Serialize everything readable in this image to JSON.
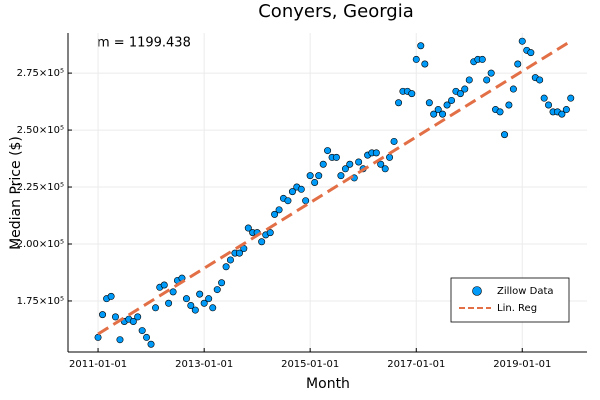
{
  "chart_data": {
    "type": "scatter",
    "title": "Conyers, Georgia",
    "x_label": "Month",
    "y_label": "Median Price ($)",
    "annotation": "m = 1199.438",
    "x": [
      "2011-01-01",
      "2011-02-01",
      "2011-03-01",
      "2011-04-01",
      "2011-05-01",
      "2011-06-01",
      "2011-07-01",
      "2011-08-01",
      "2011-09-01",
      "2011-10-01",
      "2011-11-01",
      "2011-12-01",
      "2012-01-01",
      "2012-02-01",
      "2012-03-01",
      "2012-04-01",
      "2012-05-01",
      "2012-06-01",
      "2012-07-01",
      "2012-08-01",
      "2012-09-01",
      "2012-10-01",
      "2012-11-01",
      "2012-12-01",
      "2013-01-01",
      "2013-02-01",
      "2013-03-01",
      "2013-04-01",
      "2013-05-01",
      "2013-06-01",
      "2013-07-01",
      "2013-08-01",
      "2013-09-01",
      "2013-10-01",
      "2013-11-01",
      "2013-12-01",
      "2014-01-01",
      "2014-02-01",
      "2014-03-01",
      "2014-04-01",
      "2014-05-01",
      "2014-06-01",
      "2014-07-01",
      "2014-08-01",
      "2014-09-01",
      "2014-10-01",
      "2014-11-01",
      "2014-12-01",
      "2015-01-01",
      "2015-02-01",
      "2015-03-01",
      "2015-04-01",
      "2015-05-01",
      "2015-06-01",
      "2015-07-01",
      "2015-08-01",
      "2015-09-01",
      "2015-10-01",
      "2015-11-01",
      "2015-12-01",
      "2016-01-01",
      "2016-02-01",
      "2016-03-01",
      "2016-04-01",
      "2016-05-01",
      "2016-06-01",
      "2016-07-01",
      "2016-08-01",
      "2016-09-01",
      "2016-10-01",
      "2016-11-01",
      "2016-12-01",
      "2017-01-01",
      "2017-02-01",
      "2017-03-01",
      "2017-04-01",
      "2017-05-01",
      "2017-06-01",
      "2017-07-01",
      "2017-08-01",
      "2017-09-01",
      "2017-10-01",
      "2017-11-01",
      "2017-12-01",
      "2018-01-01",
      "2018-02-01",
      "2018-03-01",
      "2018-04-01",
      "2018-05-01",
      "2018-06-01",
      "2018-07-01",
      "2018-08-01",
      "2018-09-01",
      "2018-10-01",
      "2018-11-01",
      "2018-12-01",
      "2019-01-01",
      "2019-02-01",
      "2019-03-01",
      "2019-04-01",
      "2019-05-01",
      "2019-06-01",
      "2019-07-01",
      "2019-08-01",
      "2019-09-01",
      "2019-10-01",
      "2019-11-01",
      "2019-12-01"
    ],
    "series": [
      {
        "name": "Zillow Data",
        "color": "#009af9",
        "values": [
          159000,
          169000,
          176000,
          177000,
          168000,
          158000,
          166000,
          167000,
          166000,
          168000,
          162000,
          159000,
          156000,
          172000,
          181000,
          182000,
          174000,
          179000,
          184000,
          185000,
          176000,
          173000,
          171000,
          178000,
          174000,
          176000,
          172000,
          180000,
          183000,
          190000,
          193000,
          196000,
          196000,
          198000,
          207000,
          205000,
          205000,
          201000,
          204000,
          205000,
          213000,
          215000,
          220000,
          219000,
          223000,
          225000,
          224000,
          219000,
          230000,
          227000,
          230000,
          235000,
          241000,
          238000,
          238000,
          230000,
          233000,
          235000,
          229000,
          236000,
          233000,
          239000,
          240000,
          240000,
          235000,
          233000,
          238000,
          245000,
          262000,
          267000,
          267000,
          266000,
          281000,
          287000,
          279000,
          262000,
          257000,
          259000,
          257000,
          261000,
          263000,
          267000,
          266000,
          268000,
          272000,
          280000,
          281000,
          281000,
          272000,
          275000,
          259000,
          258000,
          248000,
          261000,
          268000,
          279000,
          289000,
          285000,
          284000,
          273000,
          272000,
          264000,
          261000,
          258000,
          258000,
          257000,
          259000,
          264000
        ]
      },
      {
        "name": "Lin. Reg",
        "color": "#e26f46",
        "x": [
          "2011-01-01",
          "2019-12-01"
        ],
        "values": [
          160500,
          289000
        ]
      }
    ],
    "xlim": [
      "2010-06-08",
      "2020-03-22"
    ],
    "xticks": [
      "2011-01-01",
      "2013-01-01",
      "2015-01-01",
      "2017-01-01",
      "2019-01-01"
    ],
    "ylim": [
      152600,
      292600
    ],
    "yticks": [
      {
        "value": 175000,
        "label": "1.75×10⁵"
      },
      {
        "value": 200000,
        "label": "2.00×10⁵"
      },
      {
        "value": 225000,
        "label": "2.25×10⁵"
      },
      {
        "value": 250000,
        "label": "2.50×10⁵"
      },
      {
        "value": 275000,
        "label": "2.75×10⁵"
      }
    ],
    "grid": true,
    "legend": "bottom right"
  }
}
